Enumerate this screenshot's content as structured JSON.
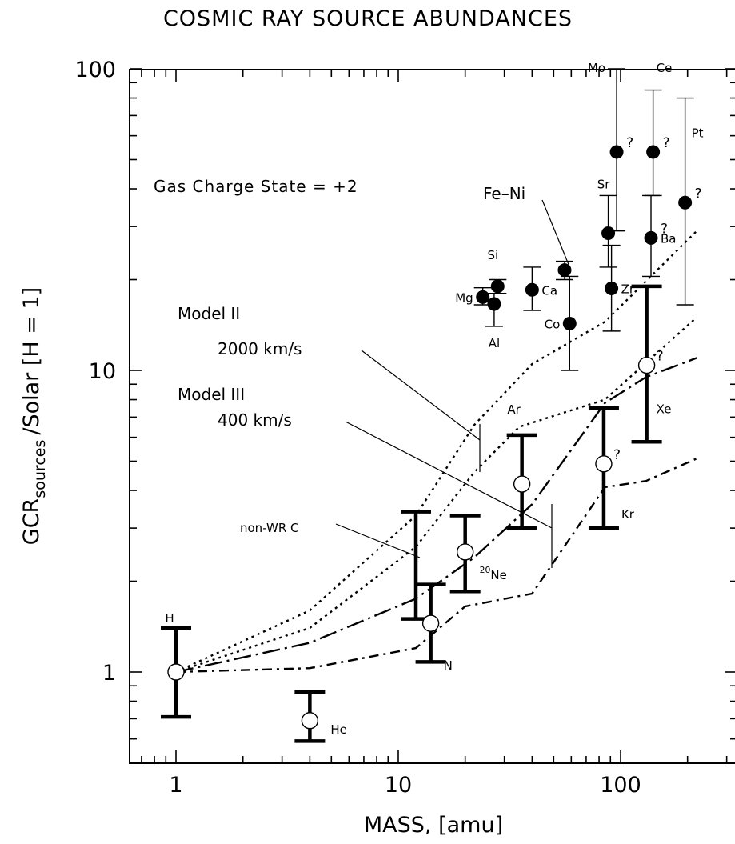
{
  "chart_data": {
    "type": "scatter",
    "title": "COSMIC RAY SOURCE ABUNDANCES",
    "xlabel": "MASS, [amu]",
    "ylabel": "/Solar [H = 1]",
    "ylabel_main": "GCR",
    "ylabel_sub": "sources",
    "xscale": "log",
    "yscale": "log",
    "xlim": [
      0.63,
      300
    ],
    "ylim": [
      0.55,
      100
    ],
    "x_ticks": [
      {
        "v": 1,
        "label": "1"
      },
      {
        "v": 10,
        "label": "10"
      },
      {
        "v": 100,
        "label": "100"
      }
    ],
    "y_ticks": [
      {
        "v": 1,
        "label": "1"
      },
      {
        "v": 10,
        "label": "10"
      },
      {
        "v": 100,
        "label": "100"
      }
    ],
    "grid": false,
    "annotations": {
      "gas_charge": "Gas Charge State = +2",
      "model2_name": "Model II",
      "model2_speed": "2000 km/s",
      "model3_name": "Model III",
      "model3_speed": "400 km/s",
      "non_wr": "non-WR C",
      "fe_ni": "Fe–Ni"
    },
    "model_curves": [
      {
        "style": "dotted",
        "x": [
          1,
          4,
          12,
          22,
          40,
          85,
          220
        ],
        "y": [
          1.0,
          1.6,
          3.3,
          6.6,
          10.5,
          14.5,
          29
        ]
      },
      {
        "style": "dotted",
        "x": [
          1,
          4,
          12,
          22,
          35,
          85,
          220
        ],
        "y": [
          1.0,
          1.4,
          2.6,
          4.6,
          6.5,
          8.0,
          15
        ]
      },
      {
        "style": "long-dash-dot",
        "x": [
          1,
          4,
          12,
          22,
          40,
          85,
          130,
          220
        ],
        "y": [
          1.0,
          1.25,
          1.75,
          2.4,
          3.6,
          7.8,
          9.5,
          11
        ]
      },
      {
        "style": "dash-dot",
        "x": [
          1,
          4,
          12,
          20,
          40,
          85,
          130,
          220
        ],
        "y": [
          1.0,
          1.03,
          1.2,
          1.65,
          1.82,
          4.1,
          4.3,
          5.1
        ]
      }
    ],
    "refractory_points": [
      {
        "label": "Mg",
        "x": 24,
        "y": 17.5,
        "ylo": 16.5,
        "yhi": 18.8,
        "label_pos": "left",
        "q": false
      },
      {
        "label": "Si",
        "x": 28,
        "y": 19,
        "ylo": 18,
        "yhi": 20,
        "label_pos": "top",
        "q": false
      },
      {
        "label": "Al",
        "x": 27,
        "y": 16.6,
        "ylo": 14,
        "yhi": 18,
        "label_pos": "bottom",
        "q": false
      },
      {
        "label": "Ca",
        "x": 40,
        "y": 18.5,
        "ylo": 15.8,
        "yhi": 22,
        "label_pos": "right",
        "q": false
      },
      {
        "label": "",
        "x": 56,
        "y": 21.5,
        "ylo": 20,
        "yhi": 23,
        "label_pos": "none",
        "q": false
      },
      {
        "label": "Co",
        "x": 59,
        "y": 14.3,
        "ylo": 10,
        "yhi": 20.5,
        "label_pos": "left",
        "q": false
      },
      {
        "label": "Sr",
        "x": 88,
        "y": 28.5,
        "ylo": 22,
        "yhi": 38,
        "label_pos": "top",
        "q": false
      },
      {
        "label": "Zr",
        "x": 91,
        "y": 18.7,
        "ylo": 13.5,
        "yhi": 26,
        "label_pos": "right",
        "q": false
      },
      {
        "label": "Mo",
        "x": 96,
        "y": 53,
        "ylo": 29,
        "yhi": 100,
        "label_pos": "left-high",
        "q": true
      },
      {
        "label": "Ce",
        "x": 140,
        "y": 53,
        "ylo": 38,
        "yhi": 85,
        "label_pos": "right-high",
        "q": true
      },
      {
        "label": "Ba",
        "x": 137,
        "y": 27.5,
        "ylo": 20.5,
        "yhi": 38,
        "label_pos": "right",
        "q": true
      },
      {
        "label": "Pt",
        "x": 195,
        "y": 36,
        "ylo": 16.5,
        "yhi": 80,
        "label_pos": "right-high",
        "q": true
      }
    ],
    "volatile_points": [
      {
        "label": "H",
        "x": 1,
        "y": 1.0,
        "ylo": 0.71,
        "yhi": 1.4,
        "label_pos": "top-left",
        "q": false
      },
      {
        "label": "He",
        "x": 4,
        "y": 0.69,
        "ylo": 0.59,
        "yhi": 0.86,
        "label_pos": "right",
        "q": false
      },
      {
        "label": "",
        "x": 12,
        "y": null,
        "ylo": 1.5,
        "yhi": 3.4,
        "label_pos": "none",
        "q": false
      },
      {
        "label": "N",
        "x": 14,
        "y": 1.45,
        "ylo": 1.08,
        "yhi": 1.95,
        "label_pos": "bottom-right",
        "q": false
      },
      {
        "label": "Ne",
        "label_super": "20",
        "x": 20,
        "y": 2.5,
        "ylo": 1.85,
        "yhi": 3.3,
        "label_pos": "right-low",
        "q": false
      },
      {
        "label": "Ar",
        "x": 36,
        "y": 4.2,
        "ylo": 3.0,
        "yhi": 6.1,
        "label_pos": "top-left",
        "q": false
      },
      {
        "label": "Kr",
        "x": 84,
        "y": 4.9,
        "ylo": 3.0,
        "yhi": 7.5,
        "label_pos": "right-low",
        "q": true
      },
      {
        "label": "Xe",
        "x": 131,
        "y": 10.4,
        "ylo": 5.8,
        "yhi": 19,
        "label_pos": "right-low",
        "q": true
      }
    ]
  }
}
